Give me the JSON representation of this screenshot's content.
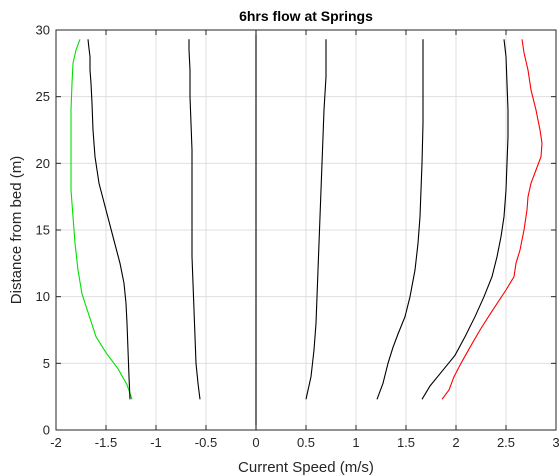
{
  "chart_data": {
    "type": "line",
    "title": "6hrs flow at Springs",
    "xlabel": "Current Speed (m/s)",
    "ylabel": "Distance from bed (m)",
    "xlim": [
      -2,
      3
    ],
    "ylim": [
      0,
      30
    ],
    "xticks": [
      -2,
      -1.5,
      -1,
      -0.5,
      0,
      0.5,
      1,
      1.5,
      2,
      2.5,
      3
    ],
    "yticks": [
      0,
      5,
      10,
      15,
      20,
      25,
      30
    ],
    "xtick_labels": [
      "-2",
      "-1.5",
      "-1",
      "-0.5",
      "0",
      "0.5",
      "1",
      "1.5",
      "2",
      "2.5",
      "3"
    ],
    "ytick_labels": [
      "0",
      "5",
      "10",
      "15",
      "20",
      "25",
      "30"
    ],
    "grid": true,
    "colors": {
      "green": "#00e000",
      "black": "#000000",
      "red": "#ff0000"
    },
    "vertical_line_x": 0,
    "series": [
      {
        "color": "#00e000",
        "x": [
          -1.24,
          -1.29,
          -1.38,
          -1.5,
          -1.6,
          -1.67,
          -1.74,
          -1.78,
          -1.81,
          -1.83,
          -1.85,
          -1.85,
          -1.85,
          -1.85,
          -1.84,
          -1.83,
          -1.8,
          -1.76
        ],
        "y": [
          2.3,
          3.4,
          4.6,
          5.8,
          7.0,
          8.6,
          10.2,
          12.0,
          14.0,
          16.0,
          18.0,
          20.0,
          22.0,
          24.0,
          26.0,
          27.5,
          28.5,
          29.3
        ]
      },
      {
        "color": "#000000",
        "x": [
          -1.26,
          -1.27,
          -1.28,
          -1.29,
          -1.3,
          -1.32,
          -1.36,
          -1.43,
          -1.5,
          -1.57,
          -1.61,
          -1.63,
          -1.64,
          -1.65,
          -1.66,
          -1.66,
          -1.67,
          -1.68
        ],
        "y": [
          2.3,
          4.0,
          6.0,
          8.0,
          9.5,
          11.0,
          12.5,
          14.5,
          16.5,
          18.5,
          20.5,
          22.5,
          24.5,
          26.0,
          27.0,
          28.0,
          28.6,
          29.3
        ]
      },
      {
        "color": "#000000",
        "x": [
          -0.56,
          -0.58,
          -0.6,
          -0.61,
          -0.62,
          -0.63,
          -0.64,
          -0.64,
          -0.64,
          -0.64,
          -0.64,
          -0.65,
          -0.66,
          -0.66,
          -0.67,
          -0.67
        ],
        "y": [
          2.3,
          3.5,
          5.0,
          7.0,
          9.0,
          11.0,
          13.0,
          15.0,
          17.0,
          19.0,
          21.0,
          23.0,
          25.0,
          27.0,
          28.5,
          29.3
        ]
      },
      {
        "color": "#000000",
        "x": [
          0.5,
          0.55,
          0.58,
          0.6,
          0.61,
          0.62,
          0.63,
          0.64,
          0.65,
          0.66,
          0.67,
          0.68,
          0.7,
          0.7
        ],
        "y": [
          2.3,
          4.0,
          6.0,
          8.0,
          10.0,
          12.0,
          14.0,
          16.0,
          18.0,
          20.0,
          22.0,
          24.0,
          26.5,
          29.3
        ]
      },
      {
        "color": "#000000",
        "x": [
          1.21,
          1.27,
          1.32,
          1.37,
          1.42,
          1.49,
          1.54,
          1.59,
          1.62,
          1.64,
          1.65,
          1.66,
          1.67,
          1.67,
          1.67
        ],
        "y": [
          2.3,
          3.5,
          5.0,
          6.2,
          7.2,
          8.5,
          10.0,
          12.0,
          14.0,
          16.0,
          18.0,
          20.0,
          23.0,
          26.5,
          29.3
        ]
      },
      {
        "color": "#000000",
        "x": [
          1.66,
          1.74,
          1.86,
          1.99,
          2.09,
          2.19,
          2.28,
          2.36,
          2.41,
          2.45,
          2.48,
          2.5,
          2.51,
          2.52,
          2.52,
          2.51,
          2.5,
          2.48
        ],
        "y": [
          2.3,
          3.3,
          4.4,
          5.6,
          7.0,
          8.5,
          10.0,
          11.5,
          13.0,
          14.5,
          16.0,
          18.0,
          20.0,
          22.0,
          24.0,
          26.0,
          28.0,
          29.3
        ]
      },
      {
        "color": "#ff0000",
        "x": [
          1.86,
          1.93,
          1.98,
          2.05,
          2.14,
          2.24,
          2.35,
          2.5,
          2.58,
          2.6,
          2.64,
          2.68,
          2.71,
          2.72,
          2.75,
          2.8,
          2.85,
          2.86,
          2.84,
          2.8,
          2.75,
          2.72,
          2.68,
          2.66
        ],
        "y": [
          2.3,
          3.0,
          4.0,
          5.0,
          6.2,
          7.5,
          8.8,
          10.5,
          11.5,
          12.5,
          13.5,
          15.0,
          16.5,
          17.5,
          18.5,
          19.5,
          20.5,
          21.5,
          22.5,
          24.0,
          25.5,
          27.0,
          28.3,
          29.3
        ]
      }
    ]
  }
}
